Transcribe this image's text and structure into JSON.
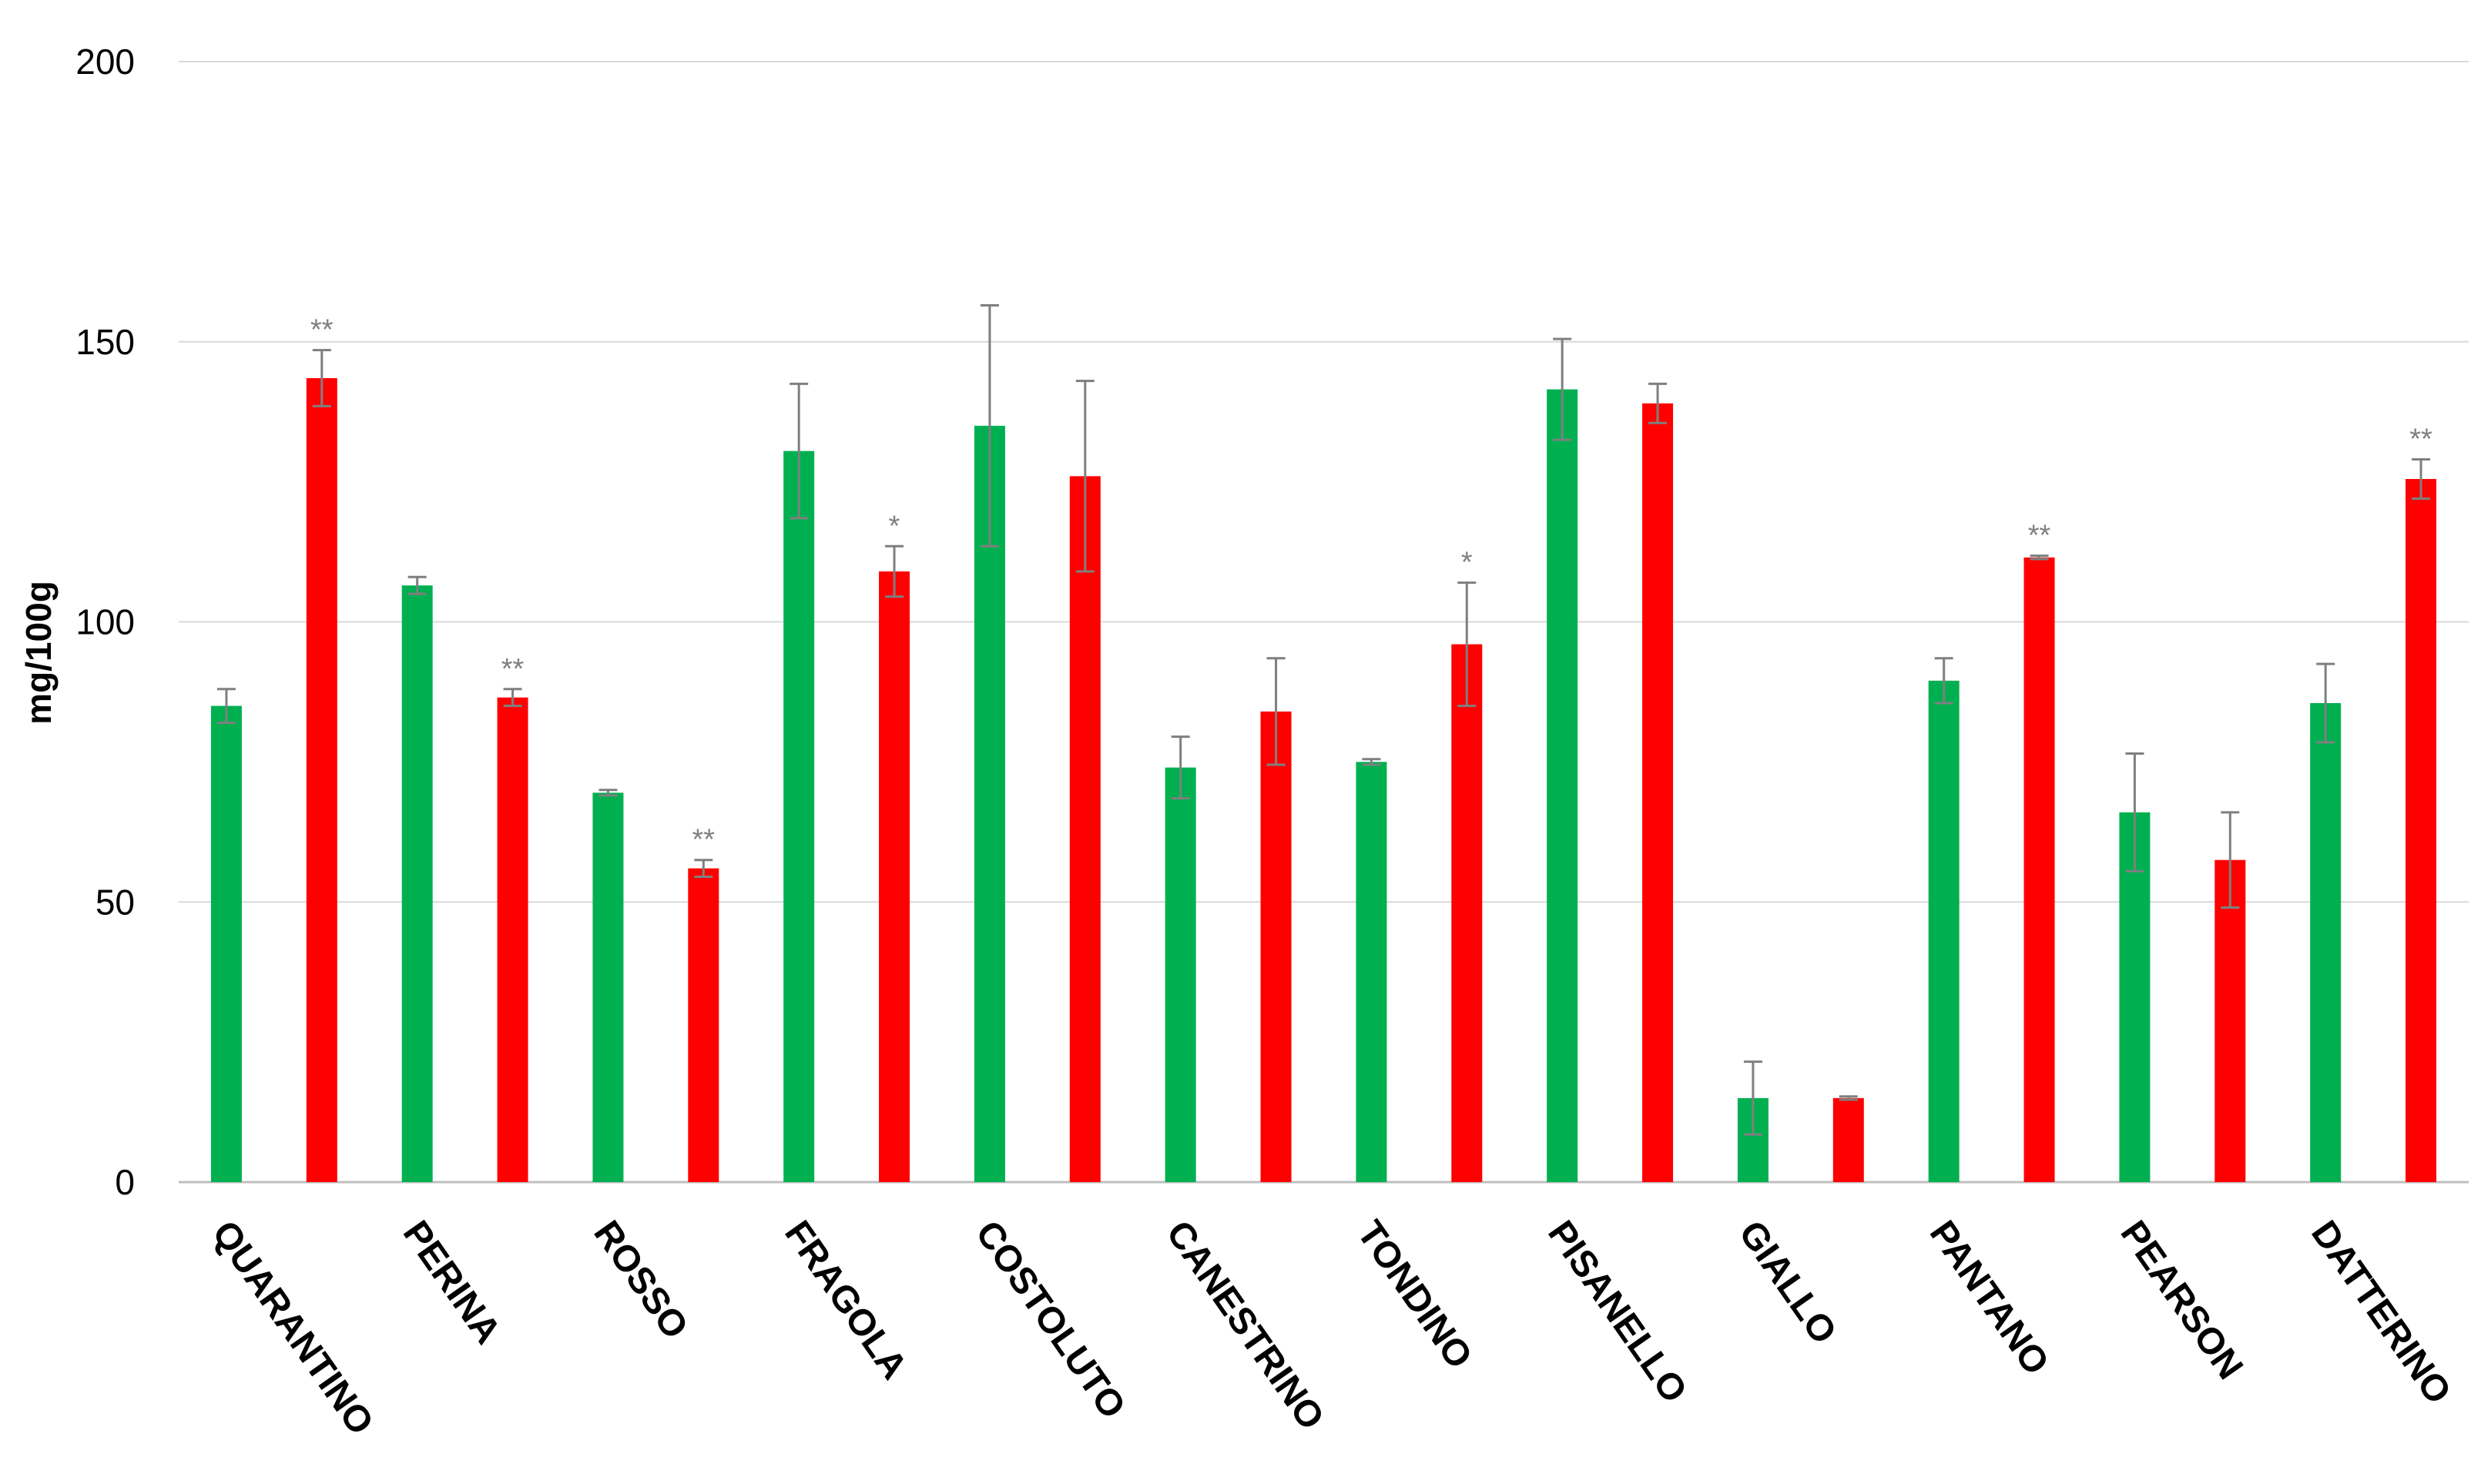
{
  "chart_data": {
    "type": "bar",
    "title": "",
    "xlabel": "",
    "ylabel": "mg/100g",
    "ylim": [
      0,
      200
    ],
    "yticks": [
      0,
      50,
      100,
      150,
      200
    ],
    "grid": true,
    "legend": "none",
    "categories": [
      "QUARANTINO",
      "PERINA",
      "ROSSO",
      "FRAGOLA",
      "COSTOLUTO",
      "CANESTRINO",
      "TONDINO",
      "PISANELLO",
      "GIALLO",
      "PANTANO",
      "PEARSON",
      "DATTERINO"
    ],
    "series": [
      {
        "color": "#00b050",
        "values": [
          85,
          106.5,
          69.5,
          130.5,
          135,
          74,
          75,
          141.5,
          15,
          89.5,
          66,
          85.5
        ],
        "errors": [
          3,
          1.5,
          0.5,
          12,
          21.5,
          5.5,
          0.5,
          9,
          6.5,
          4,
          10.5,
          7
        ]
      },
      {
        "color": "#ff0000",
        "values": [
          143.5,
          86.5,
          56,
          109,
          126,
          84,
          96,
          139,
          15,
          111.5,
          57.5,
          125.5
        ],
        "errors": [
          5,
          1.5,
          1.5,
          4.5,
          17,
          9.5,
          11,
          3.5,
          0.3,
          0.3,
          8.5,
          3.5
        ]
      }
    ],
    "significance": [
      "**",
      "**",
      "**",
      "*",
      "",
      "",
      "*",
      "",
      "",
      "**",
      "",
      "**"
    ]
  }
}
